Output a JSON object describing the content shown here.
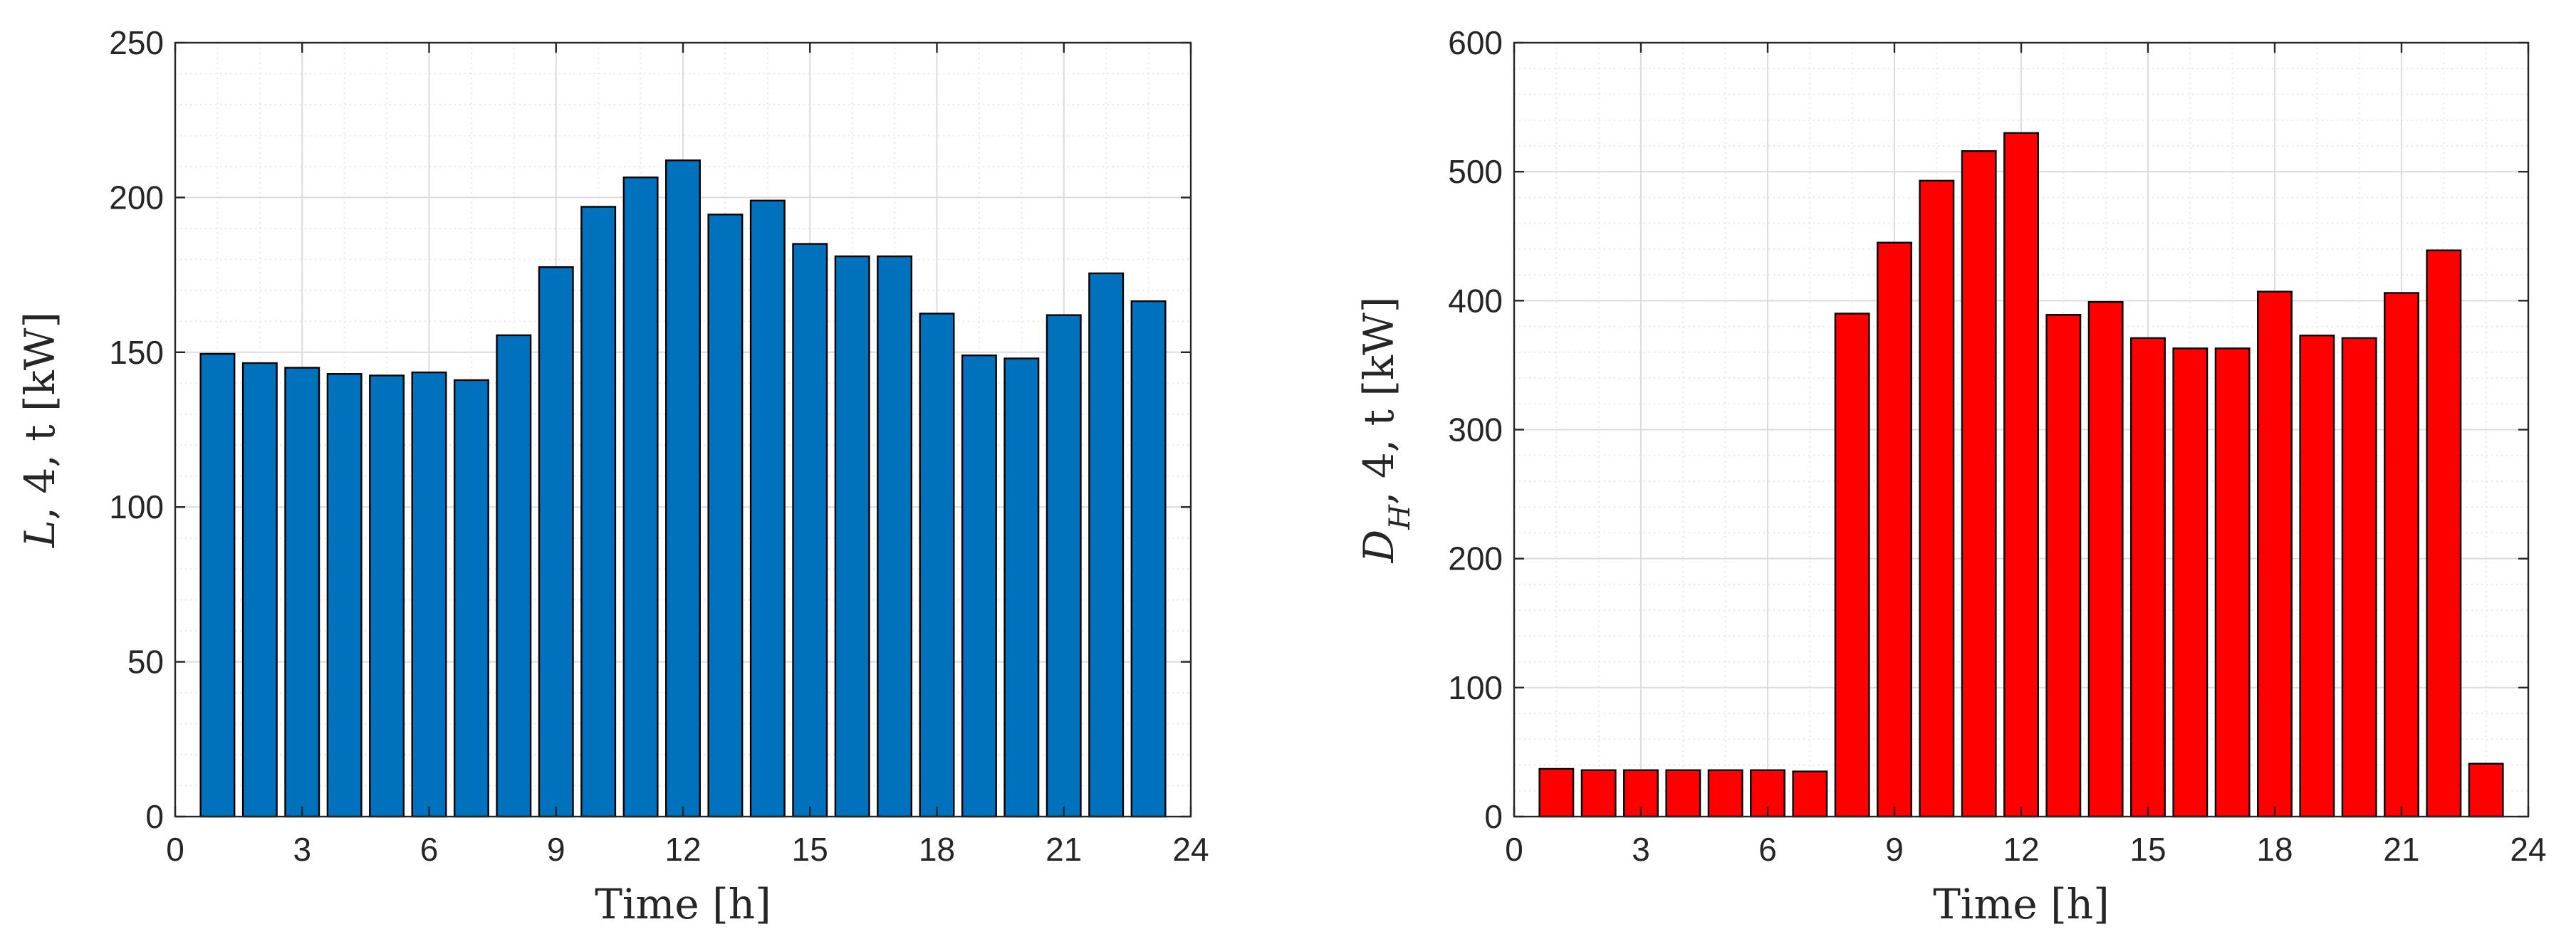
{
  "chart_data": [
    {
      "type": "bar",
      "title": "",
      "xlabel": "Time [h]",
      "ylabel": "L,4,t [kW]",
      "ylabel_parts": {
        "main": "L",
        "sub": "",
        "rest": ", 4, t",
        "unit": " [kW]"
      },
      "x": [
        1,
        2,
        3,
        4,
        5,
        6,
        7,
        8,
        9,
        10,
        11,
        12,
        13,
        14,
        15,
        16,
        17,
        18,
        19,
        20,
        21,
        22,
        23
      ],
      "values": [
        149.5,
        146.5,
        145,
        143,
        142.5,
        143.5,
        141,
        155.5,
        177.5,
        197,
        206.5,
        212,
        194.5,
        199,
        185,
        181,
        181,
        162.5,
        149,
        148,
        162,
        175.5,
        166.5
      ],
      "xlim": [
        0,
        24
      ],
      "ylim": [
        0,
        250
      ],
      "xticks": [
        "0",
        "3",
        "6",
        "9",
        "12",
        "15",
        "18",
        "21",
        "24"
      ],
      "yticks": [
        "0",
        "50",
        "100",
        "150",
        "200",
        "250"
      ],
      "grid": true,
      "minor_grid": true,
      "bar_color": "#0072BD",
      "edge_color": "#000000"
    },
    {
      "type": "bar",
      "title": "",
      "xlabel": "Time [h]",
      "ylabel": "D_H,4,t [kW]",
      "ylabel_parts": {
        "main": "D",
        "sub": "H",
        "rest": ", 4, t",
        "unit": " [kW]"
      },
      "x": [
        1,
        2,
        3,
        4,
        5,
        6,
        7,
        8,
        9,
        10,
        11,
        12,
        13,
        14,
        15,
        16,
        17,
        18,
        19,
        20,
        21,
        22,
        23
      ],
      "values": [
        37,
        36,
        36,
        36,
        36,
        36,
        35,
        390,
        445,
        493,
        516,
        530,
        389,
        399,
        371,
        363,
        363,
        407,
        373,
        371,
        406,
        439,
        41
      ],
      "xlim": [
        0,
        24
      ],
      "ylim": [
        0,
        600
      ],
      "xticks": [
        "0",
        "3",
        "6",
        "9",
        "12",
        "15",
        "18",
        "21",
        "24"
      ],
      "yticks": [
        "0",
        "100",
        "200",
        "300",
        "400",
        "500",
        "600"
      ],
      "grid": true,
      "minor_grid": true,
      "bar_color": "#FF0000",
      "edge_color": "#000000"
    }
  ]
}
